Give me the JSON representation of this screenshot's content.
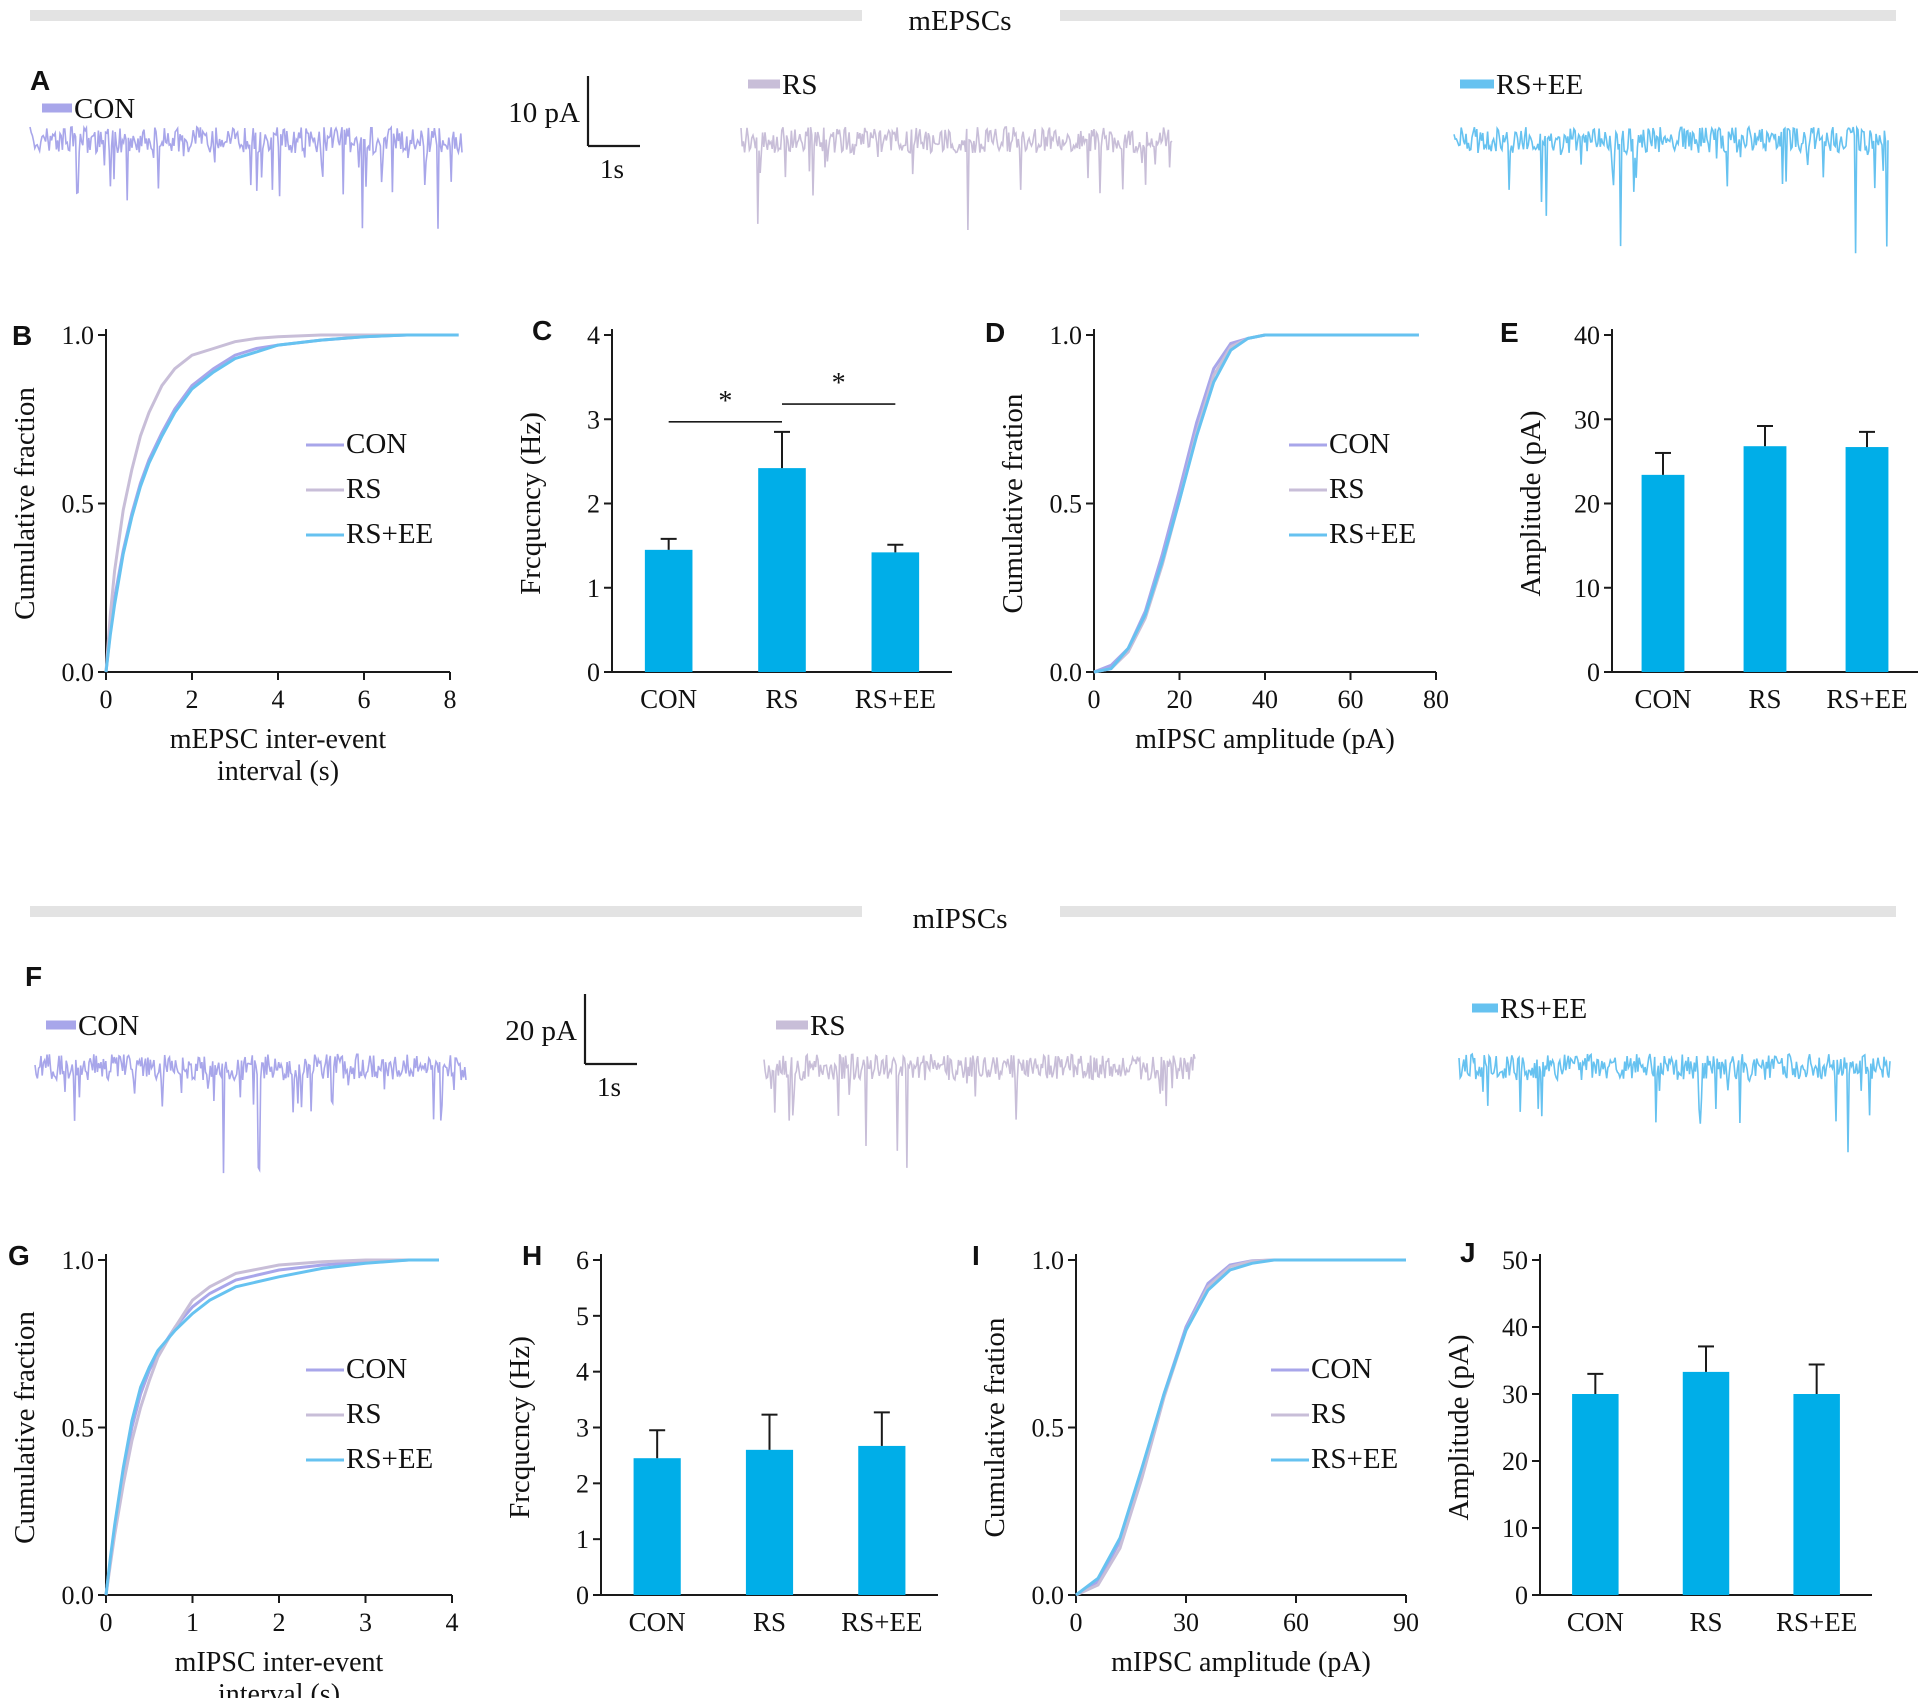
{
  "colors": {
    "con": "#a8a6ea",
    "rs": "#c8bed8",
    "rsee": "#66c2f0",
    "bar": "#00aee8",
    "axis": "#1a1a1a",
    "divider": "#e3e3e3"
  },
  "sections": [
    {
      "title": "mEPSCs",
      "traces": {
        "panel": "A",
        "scalebar": {
          "y_label": "10 pA",
          "x_label": "1s"
        },
        "groups": [
          {
            "label": "CON",
            "color_key": "con"
          },
          {
            "label": "RS",
            "color_key": "rs"
          },
          {
            "label": "RS+EE",
            "color_key": "rsee"
          }
        ]
      },
      "charts": [
        {
          "panel": "B",
          "type": "line",
          "xlabel": [
            "mEPSC inter-event",
            "interval (s)"
          ],
          "ylabel": "Cumulative fraction",
          "xlim": [
            0,
            8
          ],
          "xticks": [
            "0",
            "2",
            "4",
            "6",
            "8"
          ],
          "ylim": [
            0,
            1
          ],
          "yticks": [
            "0.0",
            "0.5",
            "1.0"
          ],
          "legend": "right",
          "series": [
            {
              "name": "CON",
              "color_key": "con",
              "x": [
                0,
                0.1,
                0.2,
                0.4,
                0.6,
                0.8,
                1.0,
                1.3,
                1.6,
                2.0,
                2.5,
                3.0,
                3.5,
                4.0,
                5.0,
                6.0,
                7.0,
                8.2
              ],
              "y": [
                0,
                0.12,
                0.22,
                0.36,
                0.47,
                0.56,
                0.63,
                0.71,
                0.78,
                0.85,
                0.9,
                0.94,
                0.96,
                0.97,
                0.985,
                0.995,
                1.0,
                1.0
              ]
            },
            {
              "name": "RS",
              "color_key": "rs",
              "x": [
                0,
                0.1,
                0.2,
                0.4,
                0.6,
                0.8,
                1.0,
                1.3,
                1.6,
                2.0,
                2.5,
                3.0,
                3.5,
                4.0,
                5.0,
                6.0,
                7.0,
                8.2
              ],
              "y": [
                0,
                0.17,
                0.3,
                0.48,
                0.6,
                0.7,
                0.77,
                0.85,
                0.9,
                0.94,
                0.96,
                0.98,
                0.99,
                0.995,
                1.0,
                1.0,
                1.0,
                1.0
              ]
            },
            {
              "name": "RS+EE",
              "color_key": "rsee",
              "x": [
                0,
                0.1,
                0.2,
                0.4,
                0.6,
                0.8,
                1.0,
                1.3,
                1.6,
                2.0,
                2.5,
                3.0,
                3.5,
                4.0,
                5.0,
                6.0,
                7.0,
                8.2
              ],
              "y": [
                0,
                0.11,
                0.2,
                0.35,
                0.46,
                0.55,
                0.62,
                0.7,
                0.77,
                0.84,
                0.89,
                0.93,
                0.95,
                0.97,
                0.985,
                0.995,
                1.0,
                1.0
              ]
            }
          ]
        },
        {
          "panel": "C",
          "type": "bar",
          "xlabel": "",
          "ylabel": "Frcqucncy (Hz)",
          "categories": [
            "CON",
            "RS",
            "RS+EE"
          ],
          "values": [
            1.45,
            2.42,
            1.42
          ],
          "errors": [
            0.13,
            0.43,
            0.09
          ],
          "ylim": [
            0,
            4
          ],
          "yticks": [
            "0",
            "1",
            "2",
            "3",
            "4"
          ],
          "significance": [
            {
              "from": 0,
              "to": 1,
              "label": "*",
              "level": 2.97
            },
            {
              "from": 1,
              "to": 2,
              "label": "*",
              "level": 3.18
            }
          ]
        },
        {
          "panel": "D",
          "type": "line",
          "xlabel": "mIPSC amplitude (pA)",
          "ylabel": "Cumulative fration",
          "xlim": [
            0,
            80
          ],
          "xticks": [
            "0",
            "20",
            "40",
            "60",
            "80"
          ],
          "ylim": [
            0,
            1
          ],
          "yticks": [
            "0.0",
            "0.5",
            "1.0"
          ],
          "legend": "right",
          "series": [
            {
              "name": "CON",
              "color_key": "con",
              "x": [
                0,
                4,
                8,
                12,
                16,
                20,
                24,
                28,
                32,
                36,
                40,
                50,
                60,
                70,
                76
              ],
              "y": [
                0,
                0.02,
                0.07,
                0.18,
                0.35,
                0.54,
                0.74,
                0.9,
                0.975,
                0.99,
                1.0,
                1.0,
                1.0,
                1.0,
                1.0
              ]
            },
            {
              "name": "RS",
              "color_key": "rs",
              "x": [
                0,
                4,
                8,
                12,
                16,
                20,
                24,
                28,
                32,
                36,
                40,
                50,
                60,
                70,
                76
              ],
              "y": [
                0,
                0.01,
                0.06,
                0.16,
                0.32,
                0.51,
                0.71,
                0.88,
                0.965,
                0.99,
                1.0,
                1.0,
                1.0,
                1.0,
                1.0
              ]
            },
            {
              "name": "RS+EE",
              "color_key": "rsee",
              "x": [
                0,
                4,
                8,
                12,
                16,
                20,
                24,
                28,
                32,
                36,
                40,
                50,
                60,
                70,
                76
              ],
              "y": [
                0,
                0.01,
                0.07,
                0.17,
                0.33,
                0.51,
                0.7,
                0.86,
                0.955,
                0.99,
                1.0,
                1.0,
                1.0,
                1.0,
                1.0
              ]
            }
          ]
        },
        {
          "panel": "E",
          "type": "bar",
          "xlabel": "",
          "ylabel": "Amplitude (pA)",
          "categories": [
            "CON",
            "RS",
            "RS+EE"
          ],
          "values": [
            23.4,
            26.8,
            26.7
          ],
          "errors": [
            2.6,
            2.4,
            1.8
          ],
          "ylim": [
            0,
            40
          ],
          "yticks": [
            "0",
            "10",
            "20",
            "30",
            "40"
          ]
        }
      ]
    },
    {
      "title": "mIPSCs",
      "traces": {
        "panel": "F",
        "scalebar": {
          "y_label": "20 pA",
          "x_label": "1s"
        },
        "groups": [
          {
            "label": "CON",
            "color_key": "con"
          },
          {
            "label": "RS",
            "color_key": "rs"
          },
          {
            "label": "RS+EE",
            "color_key": "rsee"
          }
        ]
      },
      "charts": [
        {
          "panel": "G",
          "type": "line",
          "xlabel": [
            "mIPSC inter-event",
            "interval (s)"
          ],
          "ylabel": "Cumulative fraction",
          "xlim": [
            0,
            4
          ],
          "xticks": [
            "0",
            "1",
            "2",
            "3",
            "4"
          ],
          "ylim": [
            0,
            1
          ],
          "yticks": [
            "0.0",
            "0.5",
            "1.0"
          ],
          "legend": "right",
          "series": [
            {
              "name": "CON",
              "color_key": "con",
              "x": [
                0,
                0.05,
                0.1,
                0.2,
                0.3,
                0.4,
                0.5,
                0.6,
                0.8,
                1.0,
                1.2,
                1.5,
                2.0,
                2.5,
                3.0,
                3.5,
                3.85
              ],
              "y": [
                0,
                0.1,
                0.2,
                0.36,
                0.5,
                0.6,
                0.67,
                0.72,
                0.8,
                0.86,
                0.9,
                0.94,
                0.97,
                0.985,
                0.995,
                1.0,
                1.0
              ]
            },
            {
              "name": "RS",
              "color_key": "rs",
              "x": [
                0,
                0.05,
                0.1,
                0.2,
                0.3,
                0.4,
                0.5,
                0.6,
                0.8,
                1.0,
                1.2,
                1.5,
                2.0,
                2.5,
                3.0,
                3.5,
                3.85
              ],
              "y": [
                0,
                0.09,
                0.18,
                0.33,
                0.46,
                0.56,
                0.64,
                0.71,
                0.8,
                0.88,
                0.92,
                0.96,
                0.985,
                0.995,
                1.0,
                1.0,
                1.0
              ]
            },
            {
              "name": "RS+EE",
              "color_key": "rsee",
              "x": [
                0,
                0.05,
                0.1,
                0.2,
                0.3,
                0.4,
                0.5,
                0.6,
                0.8,
                1.0,
                1.2,
                1.5,
                2.0,
                2.5,
                3.0,
                3.5,
                3.85
              ],
              "y": [
                0,
                0.11,
                0.21,
                0.38,
                0.52,
                0.62,
                0.68,
                0.73,
                0.79,
                0.84,
                0.88,
                0.92,
                0.95,
                0.975,
                0.99,
                1.0,
                1.0
              ]
            }
          ]
        },
        {
          "panel": "H",
          "type": "bar",
          "xlabel": "",
          "ylabel": "Frcqucncy (Hz)",
          "categories": [
            "CON",
            "RS",
            "RS+EE"
          ],
          "values": [
            2.45,
            2.6,
            2.67
          ],
          "errors": [
            0.5,
            0.63,
            0.6
          ],
          "ylim": [
            0,
            6
          ],
          "yticks": [
            "0",
            "1",
            "2",
            "3",
            "4",
            "5",
            "6"
          ]
        },
        {
          "panel": "I",
          "type": "line",
          "xlabel": "mIPSC amplitude (pA)",
          "ylabel": "Cumulative fration",
          "xlim": [
            0,
            90
          ],
          "xticks": [
            "0",
            "30",
            "60",
            "90"
          ],
          "ylim": [
            0,
            1
          ],
          "yticks": [
            "0.0",
            "0.5",
            "1.0"
          ],
          "legend": "right",
          "series": [
            {
              "name": "CON",
              "color_key": "con",
              "x": [
                0,
                6,
                12,
                18,
                24,
                30,
                36,
                42,
                48,
                54,
                60,
                75,
                90
              ],
              "y": [
                0,
                0.04,
                0.16,
                0.37,
                0.6,
                0.8,
                0.93,
                0.985,
                0.998,
                1.0,
                1.0,
                1.0,
                1.0
              ]
            },
            {
              "name": "RS",
              "color_key": "rs",
              "x": [
                0,
                6,
                12,
                18,
                24,
                30,
                36,
                42,
                48,
                54,
                60,
                75,
                90
              ],
              "y": [
                0,
                0.03,
                0.14,
                0.35,
                0.59,
                0.79,
                0.92,
                0.98,
                0.997,
                1.0,
                1.0,
                1.0,
                1.0
              ]
            },
            {
              "name": "RS+EE",
              "color_key": "rsee",
              "x": [
                0,
                6,
                12,
                18,
                24,
                30,
                36,
                42,
                48,
                54,
                60,
                75,
                90
              ],
              "y": [
                0,
                0.05,
                0.17,
                0.38,
                0.6,
                0.79,
                0.91,
                0.97,
                0.99,
                1.0,
                1.0,
                1.0,
                1.0
              ]
            }
          ]
        },
        {
          "panel": "J",
          "type": "bar",
          "xlabel": "",
          "ylabel": "Amplitude (pA)",
          "categories": [
            "CON",
            "RS",
            "RS+EE"
          ],
          "values": [
            30.0,
            33.3,
            30.0
          ],
          "errors": [
            3.0,
            3.8,
            4.4
          ],
          "ylim": [
            0,
            50
          ],
          "yticks": [
            "0",
            "10",
            "20",
            "30",
            "40",
            "50"
          ]
        }
      ]
    }
  ]
}
